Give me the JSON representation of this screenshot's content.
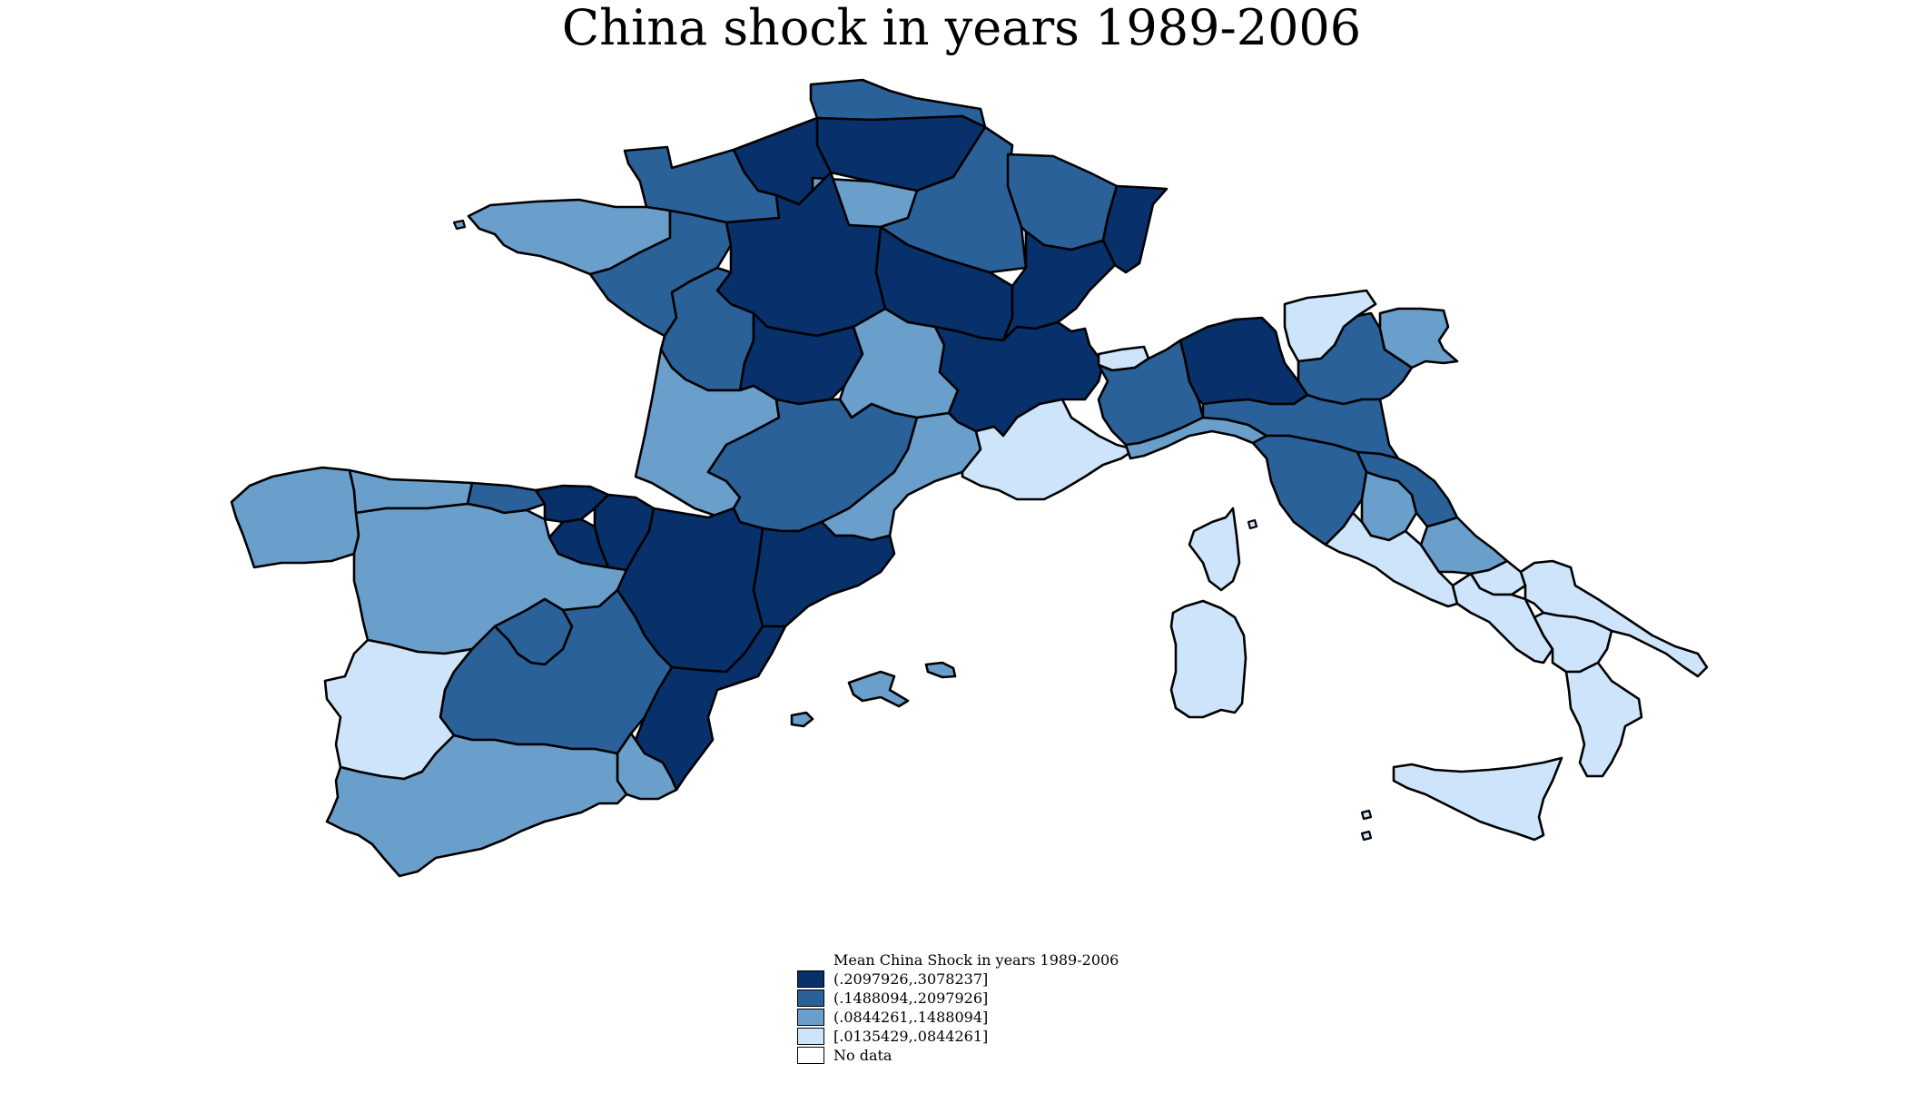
{
  "title": "China shock in years 1989-2006",
  "colors": {
    "class4": "#08306b",
    "class3": "#2b6199",
    "class2": "#6a9ecb",
    "class1": "#cde4fa",
    "nodata": "#ffffff"
  },
  "legend": {
    "title": "Mean China Shock in years 1989-2006",
    "placement": "bottom-center",
    "entries": [
      {
        "label": "(.2097926,.3078237]",
        "class": "class4"
      },
      {
        "label": "(.1488094,.2097926]",
        "class": "class3"
      },
      {
        "label": "(.0844261,.1488094]",
        "class": "class2"
      },
      {
        "label": "[.0135429,.0844261]",
        "class": "class1"
      },
      {
        "label": "No data",
        "class": "nodata"
      }
    ]
  },
  "regions": [
    {
      "id": "fr-nord",
      "class": "class3"
    },
    {
      "id": "fr-picardie",
      "class": "class4"
    },
    {
      "id": "fr-haute-normandie",
      "class": "class4"
    },
    {
      "id": "fr-basse-normandie",
      "class": "class3"
    },
    {
      "id": "fr-ile-de-france",
      "class": "class2"
    },
    {
      "id": "fr-champagne",
      "class": "class3"
    },
    {
      "id": "fr-lorraine",
      "class": "class3"
    },
    {
      "id": "fr-alsace",
      "class": "class4"
    },
    {
      "id": "fr-bretagne",
      "class": "class2"
    },
    {
      "id": "fr-pays-de-la-loire",
      "class": "class3"
    },
    {
      "id": "fr-centre",
      "class": "class4"
    },
    {
      "id": "fr-bourgogne",
      "class": "class4"
    },
    {
      "id": "fr-franche-comte",
      "class": "class4"
    },
    {
      "id": "fr-poitou",
      "class": "class3"
    },
    {
      "id": "fr-limousin",
      "class": "class4"
    },
    {
      "id": "fr-auvergne",
      "class": "class2"
    },
    {
      "id": "fr-rhone-alpes",
      "class": "class4"
    },
    {
      "id": "fr-aquitaine",
      "class": "class2"
    },
    {
      "id": "fr-midi-pyrenees",
      "class": "class3"
    },
    {
      "id": "fr-languedoc",
      "class": "class2"
    },
    {
      "id": "fr-paca",
      "class": "class1"
    },
    {
      "id": "fr-corse",
      "class": "class1"
    },
    {
      "id": "es-galicia",
      "class": "class2"
    },
    {
      "id": "es-asturias",
      "class": "class2"
    },
    {
      "id": "es-cantabria",
      "class": "class3"
    },
    {
      "id": "es-pais-vasco",
      "class": "class4"
    },
    {
      "id": "es-navarra",
      "class": "class4"
    },
    {
      "id": "es-la-rioja",
      "class": "class4"
    },
    {
      "id": "es-castilla-leon",
      "class": "class2"
    },
    {
      "id": "es-aragon",
      "class": "class4"
    },
    {
      "id": "es-cataluna",
      "class": "class4"
    },
    {
      "id": "es-madrid",
      "class": "class3"
    },
    {
      "id": "es-castilla-la-mancha",
      "class": "class3"
    },
    {
      "id": "es-extremadura",
      "class": "class1"
    },
    {
      "id": "es-valencia",
      "class": "class4"
    },
    {
      "id": "es-murcia",
      "class": "class2"
    },
    {
      "id": "es-andalucia",
      "class": "class2"
    },
    {
      "id": "es-baleares",
      "class": "class2"
    },
    {
      "id": "it-valle-aosta",
      "class": "class1"
    },
    {
      "id": "it-piemonte",
      "class": "class3"
    },
    {
      "id": "it-lombardia",
      "class": "class4"
    },
    {
      "id": "it-trentino",
      "class": "class1"
    },
    {
      "id": "it-veneto",
      "class": "class3"
    },
    {
      "id": "it-friuli",
      "class": "class2"
    },
    {
      "id": "it-liguria",
      "class": "class2"
    },
    {
      "id": "it-emilia-romagna",
      "class": "class3"
    },
    {
      "id": "it-toscana",
      "class": "class3"
    },
    {
      "id": "it-umbria",
      "class": "class2"
    },
    {
      "id": "it-marche",
      "class": "class3"
    },
    {
      "id": "it-lazio",
      "class": "class1"
    },
    {
      "id": "it-abruzzo",
      "class": "class2"
    },
    {
      "id": "it-molise",
      "class": "class1"
    },
    {
      "id": "it-campania",
      "class": "class1"
    },
    {
      "id": "it-puglia",
      "class": "class1"
    },
    {
      "id": "it-basilicata",
      "class": "class1"
    },
    {
      "id": "it-calabria",
      "class": "class1"
    },
    {
      "id": "it-sicilia",
      "class": "class1"
    },
    {
      "id": "it-sardegna",
      "class": "class1"
    }
  ]
}
